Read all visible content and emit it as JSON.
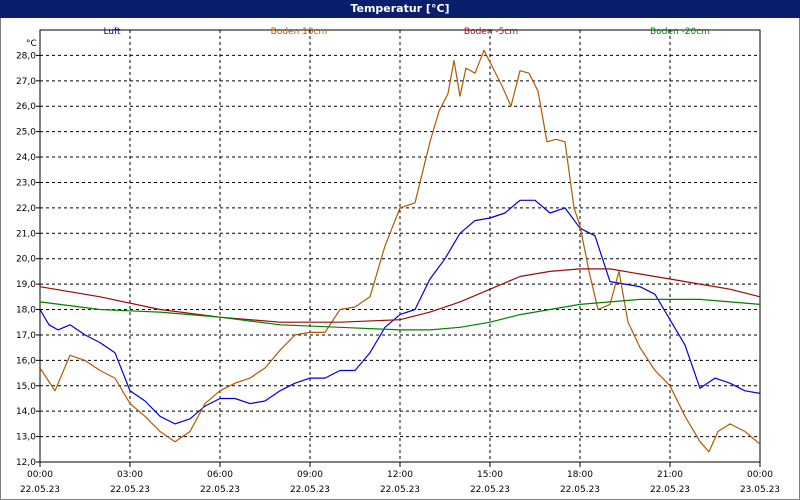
{
  "title": "Temperatur [°C]",
  "chart_data": {
    "type": "line",
    "title": "Temperatur [°C]",
    "ylabel": "°C",
    "ylim": [
      12,
      29
    ],
    "yticks": [
      "12,0",
      "13,0",
      "14,0",
      "15,0",
      "16,0",
      "17,0",
      "18,0",
      "19,0",
      "20,0",
      "21,0",
      "22,0",
      "23,0",
      "24,0",
      "25,0",
      "26,0",
      "27,0",
      "28,0"
    ],
    "xlim_hours": [
      0,
      24
    ],
    "x_ticks": [
      {
        "time": "00:00",
        "date": "22.05.23"
      },
      {
        "time": "03:00",
        "date": "22.05.23"
      },
      {
        "time": "06:00",
        "date": "22.05.23"
      },
      {
        "time": "09:00",
        "date": "22.05.23"
      },
      {
        "time": "12:00",
        "date": "22.05.23"
      },
      {
        "time": "15:00",
        "date": "22.05.23"
      },
      {
        "time": "18:00",
        "date": "22.05.23"
      },
      {
        "time": "21:00",
        "date": "22.05.23"
      },
      {
        "time": "00:00",
        "date": "23.05.23"
      }
    ],
    "grid": true,
    "legend_position": "top",
    "series": [
      {
        "name": "Luft",
        "color": "#0000dd",
        "x": [
          0,
          0.3,
          0.6,
          1,
          1.5,
          2,
          2.5,
          3,
          3.5,
          4,
          4.5,
          5,
          5.5,
          6,
          6.5,
          7,
          7.5,
          8,
          8.5,
          9,
          9.5,
          10,
          10.5,
          11,
          11.5,
          12,
          12.5,
          13,
          13.5,
          14,
          14.5,
          15,
          15.5,
          16,
          16.5,
          17,
          17.5,
          18,
          18.5,
          19,
          19.5,
          20,
          20.5,
          21,
          21.5,
          22,
          22.5,
          23,
          23.5,
          24
        ],
        "y": [
          18.0,
          17.4,
          17.2,
          17.4,
          17.0,
          16.7,
          16.3,
          14.8,
          14.4,
          13.8,
          13.5,
          13.7,
          14.2,
          14.5,
          14.5,
          14.3,
          14.4,
          14.8,
          15.1,
          15.3,
          15.3,
          15.6,
          15.6,
          16.3,
          17.3,
          17.8,
          18.0,
          19.2,
          20.0,
          21.0,
          21.5,
          21.6,
          21.8,
          22.3,
          22.3,
          21.8,
          22.0,
          21.2,
          20.9,
          19.1,
          19.0,
          18.9,
          18.6,
          17.6,
          16.6,
          14.9,
          15.3,
          15.1,
          14.8,
          14.7
        ]
      },
      {
        "name": "Boden 10cm",
        "color": "#b25a00",
        "x": [
          0,
          0.5,
          1,
          1.5,
          2,
          2.5,
          3,
          3.5,
          4,
          4.5,
          5,
          5.5,
          6,
          6.5,
          7,
          7.5,
          8,
          8.5,
          9,
          9.5,
          10,
          10.5,
          11,
          11.5,
          12,
          12.5,
          13,
          13.3,
          13.6,
          13.8,
          14,
          14.2,
          14.5,
          14.8,
          15.1,
          15.4,
          15.7,
          16,
          16.3,
          16.6,
          16.9,
          17.2,
          17.5,
          17.8,
          18,
          18.3,
          18.6,
          19,
          19.3,
          19.6,
          20,
          20.5,
          21,
          21.5,
          22,
          22.3,
          22.6,
          23,
          23.5,
          24
        ],
        "y": [
          15.7,
          14.8,
          16.2,
          16.0,
          15.6,
          15.3,
          14.3,
          13.8,
          13.2,
          12.8,
          13.2,
          14.3,
          14.8,
          15.1,
          15.3,
          15.7,
          16.4,
          17.0,
          17.1,
          17.1,
          18.0,
          18.1,
          18.5,
          20.5,
          22.0,
          22.2,
          24.6,
          25.8,
          26.5,
          27.8,
          26.4,
          27.5,
          27.3,
          28.2,
          27.5,
          26.8,
          26.0,
          27.4,
          27.3,
          26.6,
          24.6,
          24.7,
          24.6,
          22.0,
          21.3,
          19.5,
          18.0,
          18.2,
          19.5,
          17.5,
          16.5,
          15.6,
          15.0,
          13.8,
          12.8,
          12.4,
          13.2,
          13.5,
          13.2,
          12.7
        ]
      },
      {
        "name": "Boden -5cm",
        "color": "#9b0a0a",
        "x": [
          0,
          2,
          4,
          6,
          8,
          10,
          12,
          13,
          14,
          15,
          16,
          17,
          18,
          19,
          20,
          21,
          22,
          23,
          24
        ],
        "y": [
          18.9,
          18.5,
          18.0,
          17.7,
          17.5,
          17.5,
          17.6,
          17.9,
          18.3,
          18.8,
          19.3,
          19.5,
          19.6,
          19.6,
          19.4,
          19.2,
          19.0,
          18.8,
          18.5
        ]
      },
      {
        "name": "Boden -20cm",
        "color": "#008000",
        "x": [
          0,
          2,
          4,
          6,
          8,
          10,
          12,
          13,
          14,
          15,
          16,
          17,
          18,
          19,
          20,
          21,
          22,
          23,
          24
        ],
        "y": [
          18.3,
          18.0,
          17.9,
          17.7,
          17.4,
          17.3,
          17.2,
          17.2,
          17.3,
          17.5,
          17.8,
          18.0,
          18.2,
          18.3,
          18.4,
          18.4,
          18.4,
          18.3,
          18.2
        ]
      }
    ]
  }
}
